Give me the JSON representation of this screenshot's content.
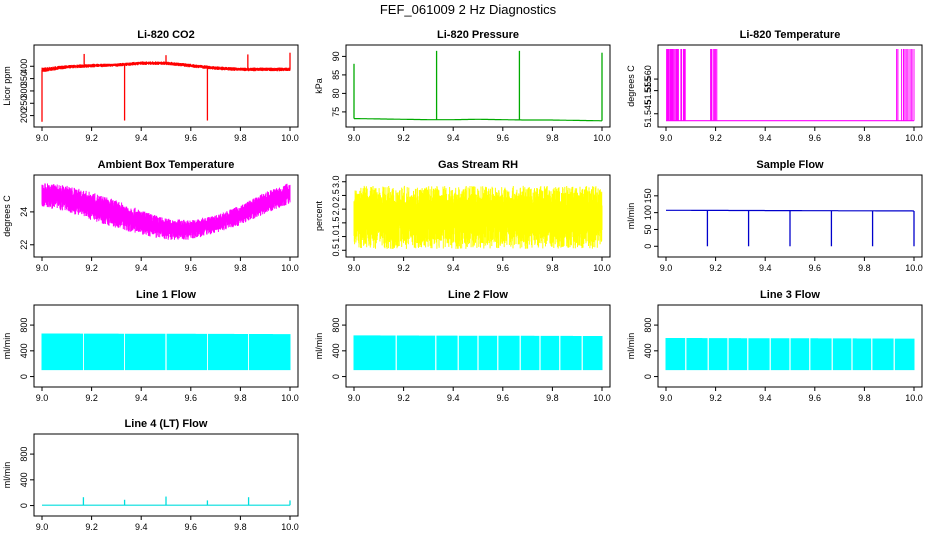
{
  "page_title": "FEF_061009  2 Hz Diagnostics",
  "chart_data": [
    {
      "type": "line",
      "title": "Li-820 CO2",
      "xlabel": "",
      "ylabel": "Licor ppm",
      "xlim": [
        9.0,
        10.0
      ],
      "ylim": [
        170,
        470
      ],
      "xticks": [
        "9.0",
        "9.2",
        "9.4",
        "9.6",
        "9.8",
        "10.0"
      ],
      "yticks": [
        "200",
        "250",
        "300",
        "350",
        "400"
      ],
      "ytick_values": [
        200,
        250,
        300,
        350,
        400
      ],
      "color": "#ff0000",
      "style": "noise",
      "series": [
        {
          "name": "CO2",
          "x": [
            9.0,
            9.1,
            9.2,
            9.3,
            9.4,
            9.5,
            9.6,
            9.7,
            9.8,
            9.9,
            10.0
          ],
          "low": [
            375,
            390,
            395,
            398,
            405,
            405,
            395,
            385,
            380,
            380,
            380
          ],
          "high": [
            395,
            405,
            410,
            412,
            420,
            420,
            410,
            400,
            395,
            395,
            395
          ]
        }
      ],
      "spikes": [
        {
          "x": 9.0,
          "to": 175
        },
        {
          "x": 9.333,
          "to": 180
        },
        {
          "x": 9.667,
          "to": 180
        },
        {
          "x": 9.17,
          "to": 450
        },
        {
          "x": 9.5,
          "to": 445
        },
        {
          "x": 9.83,
          "to": 448
        },
        {
          "x": 10.0,
          "to": 455
        }
      ]
    },
    {
      "type": "line",
      "title": "Li-820 Pressure",
      "xlabel": "",
      "ylabel": "kPa",
      "xlim": [
        9.0,
        10.0
      ],
      "ylim": [
        72,
        92
      ],
      "xticks": [
        "9.0",
        "9.2",
        "9.4",
        "9.6",
        "9.8",
        "10.0"
      ],
      "yticks": [
        "75",
        "80",
        "85",
        "90"
      ],
      "ytick_values": [
        75,
        80,
        85,
        90
      ],
      "color": "#00aa00",
      "style": "line",
      "series": [
        {
          "name": "Pressure",
          "x": [
            9.0,
            9.1,
            9.2,
            9.3,
            9.4,
            9.5,
            9.6,
            9.7,
            9.8,
            9.9,
            10.0
          ],
          "y": [
            73.2,
            73.1,
            73.0,
            72.9,
            72.9,
            73.0,
            72.9,
            72.8,
            72.8,
            72.7,
            72.6
          ]
        }
      ],
      "spikes": [
        {
          "x": 9.0,
          "to": 88
        },
        {
          "x": 9.333,
          "to": 91.5
        },
        {
          "x": 9.667,
          "to": 91.5
        },
        {
          "x": 10.0,
          "to": 91
        }
      ]
    },
    {
      "type": "line",
      "title": "Li-820 Temperature",
      "xlabel": "",
      "ylabel": "degrees C",
      "xlim": [
        9.0,
        10.0
      ],
      "ylim": [
        51.541,
        51.573
      ],
      "xticks": [
        "9.0",
        "9.2",
        "9.4",
        "9.6",
        "9.8",
        "10.0"
      ],
      "yticks": [
        "51.545",
        "51.555",
        "51.560"
      ],
      "ytick_values": [
        51.545,
        51.555,
        51.56
      ],
      "color": "#ff00ff",
      "style": "baseline",
      "series": [
        {
          "name": "Temperature",
          "x": [
            9.0,
            10.0
          ],
          "y": [
            51.542,
            51.542
          ]
        }
      ],
      "bursts": [
        {
          "from": 9.0,
          "to": 9.08
        },
        {
          "from": 9.18,
          "to": 9.21
        },
        {
          "from": 9.93,
          "to": 10.0
        }
      ],
      "burst_top": 51.573
    },
    {
      "type": "line",
      "title": "Ambient Box Temperature",
      "xlabel": "",
      "ylabel": "degrees C",
      "xlim": [
        9.0,
        10.0
      ],
      "ylim": [
        21.5,
        26.0
      ],
      "xticks": [
        "9.0",
        "9.2",
        "9.4",
        "9.6",
        "9.8",
        "10.0"
      ],
      "yticks": [
        "22",
        "24"
      ],
      "ytick_values": [
        22,
        24
      ],
      "color": "#ff00ff",
      "style": "noise",
      "series": [
        {
          "name": "Ambient",
          "x": [
            9.0,
            9.1,
            9.2,
            9.3,
            9.4,
            9.5,
            9.6,
            9.7,
            9.8,
            9.9,
            10.0
          ],
          "low": [
            24.3,
            24.0,
            23.5,
            23.0,
            22.6,
            22.3,
            22.3,
            22.7,
            23.2,
            23.9,
            24.5
          ],
          "high": [
            25.8,
            25.6,
            25.2,
            24.7,
            24.1,
            23.6,
            23.5,
            23.8,
            24.4,
            25.2,
            25.8
          ]
        }
      ],
      "spikes": []
    },
    {
      "type": "line",
      "title": "Gas Stream RH",
      "xlabel": "",
      "ylabel": "percent",
      "xlim": [
        9.0,
        10.0
      ],
      "ylim": [
        0.4,
        3.1
      ],
      "xticks": [
        "9.0",
        "9.2",
        "9.4",
        "9.6",
        "9.8",
        "10.0"
      ],
      "yticks": [
        "0.5",
        "1.0",
        "1.5",
        "2.0",
        "2.5",
        "3.0"
      ],
      "ytick_values": [
        0.5,
        1.0,
        1.5,
        2.0,
        2.5,
        3.0
      ],
      "color": "#ffff00",
      "style": "noise",
      "series": [
        {
          "name": "RH",
          "x": [
            9.0,
            10.0
          ],
          "low": [
            0.55,
            0.55
          ],
          "high": [
            2.85,
            2.85
          ]
        }
      ],
      "spikes": []
    },
    {
      "type": "line",
      "title": "Sample Flow",
      "xlabel": "",
      "ylabel": "ml/min",
      "xlim": [
        9.0,
        10.0
      ],
      "ylim": [
        -20,
        200
      ],
      "xticks": [
        "9.0",
        "9.2",
        "9.4",
        "9.6",
        "9.8",
        "10.0"
      ],
      "yticks": [
        "0",
        "50",
        "100",
        "150"
      ],
      "ytick_values": [
        0,
        50,
        100,
        150
      ],
      "color": "#0000cc",
      "style": "line",
      "series": [
        {
          "name": "Sample",
          "x": [
            9.0,
            10.0
          ],
          "y": [
            107,
            105
          ]
        }
      ],
      "spikes": [
        {
          "x": 9.167,
          "to": 0
        },
        {
          "x": 9.333,
          "to": 0
        },
        {
          "x": 9.5,
          "to": 0
        },
        {
          "x": 9.667,
          "to": 0
        },
        {
          "x": 9.833,
          "to": 0
        },
        {
          "x": 10.0,
          "to": 0
        }
      ]
    },
    {
      "type": "line",
      "title": "Line 1 Flow",
      "xlabel": "",
      "ylabel": "ml/min",
      "xlim": [
        9.0,
        10.0
      ],
      "ylim": [
        -100,
        1050
      ],
      "xticks": [
        "9.0",
        "9.2",
        "9.4",
        "9.6",
        "9.8",
        "10.0"
      ],
      "yticks": [
        "0",
        "400",
        "800"
      ],
      "ytick_values": [
        0,
        400,
        800
      ],
      "color": "#00ffff",
      "style": "band",
      "series": [
        {
          "name": "Line 1",
          "x": [
            9.0,
            10.0
          ],
          "low": [
            100,
            100
          ],
          "high": [
            670,
            660
          ]
        }
      ],
      "gaps": [
        9.167,
        9.333,
        9.5,
        9.667,
        9.833
      ],
      "spikes": []
    },
    {
      "type": "line",
      "title": "Line 2 Flow",
      "xlabel": "",
      "ylabel": "ml/min",
      "xlim": [
        9.0,
        10.0
      ],
      "ylim": [
        -100,
        1050
      ],
      "xticks": [
        "9.0",
        "9.2",
        "9.4",
        "9.6",
        "9.8",
        "10.0"
      ],
      "yticks": [
        "0",
        "400",
        "800"
      ],
      "ytick_values": [
        0,
        400,
        800
      ],
      "color": "#00ffff",
      "style": "band",
      "series": [
        {
          "name": "Line 2",
          "x": [
            9.0,
            10.0
          ],
          "low": [
            100,
            100
          ],
          "high": [
            640,
            630
          ]
        }
      ],
      "gaps": [
        9.17,
        9.33,
        9.42,
        9.5,
        9.58,
        9.67,
        9.75,
        9.83,
        9.92
      ],
      "spikes": []
    },
    {
      "type": "line",
      "title": "Line 3 Flow",
      "xlabel": "",
      "ylabel": "ml/min",
      "xlim": [
        9.0,
        10.0
      ],
      "ylim": [
        -100,
        1050
      ],
      "xticks": [
        "9.0",
        "9.2",
        "9.4",
        "9.6",
        "9.8",
        "10.0"
      ],
      "yticks": [
        "0",
        "400",
        "800"
      ],
      "ytick_values": [
        0,
        400,
        800
      ],
      "color": "#00ffff",
      "style": "band",
      "series": [
        {
          "name": "Line 3",
          "x": [
            9.0,
            10.0
          ],
          "low": [
            100,
            100
          ],
          "high": [
            600,
            590
          ]
        }
      ],
      "gaps": [
        9.08,
        9.17,
        9.25,
        9.33,
        9.42,
        9.5,
        9.58,
        9.67,
        9.75,
        9.83,
        9.92
      ],
      "spikes": []
    },
    {
      "type": "line",
      "title": "Line 4 (LT) Flow",
      "xlabel": "",
      "ylabel": "ml/min",
      "xlim": [
        9.0,
        10.0
      ],
      "ylim": [
        -100,
        1050
      ],
      "xticks": [
        "9.0",
        "9.2",
        "9.4",
        "9.6",
        "9.8",
        "10.0"
      ],
      "yticks": [
        "0",
        "400",
        "800"
      ],
      "ytick_values": [
        0,
        400,
        800
      ],
      "color": "#00dddd",
      "style": "line",
      "series": [
        {
          "name": "Line 4",
          "x": [
            9.0,
            10.0
          ],
          "y": [
            5,
            5
          ]
        }
      ],
      "spikes": [
        {
          "x": 9.167,
          "to": 130
        },
        {
          "x": 9.333,
          "to": 90
        },
        {
          "x": 9.5,
          "to": 140
        },
        {
          "x": 9.667,
          "to": 80
        },
        {
          "x": 9.833,
          "to": 130
        },
        {
          "x": 10.0,
          "to": 80
        }
      ]
    }
  ]
}
